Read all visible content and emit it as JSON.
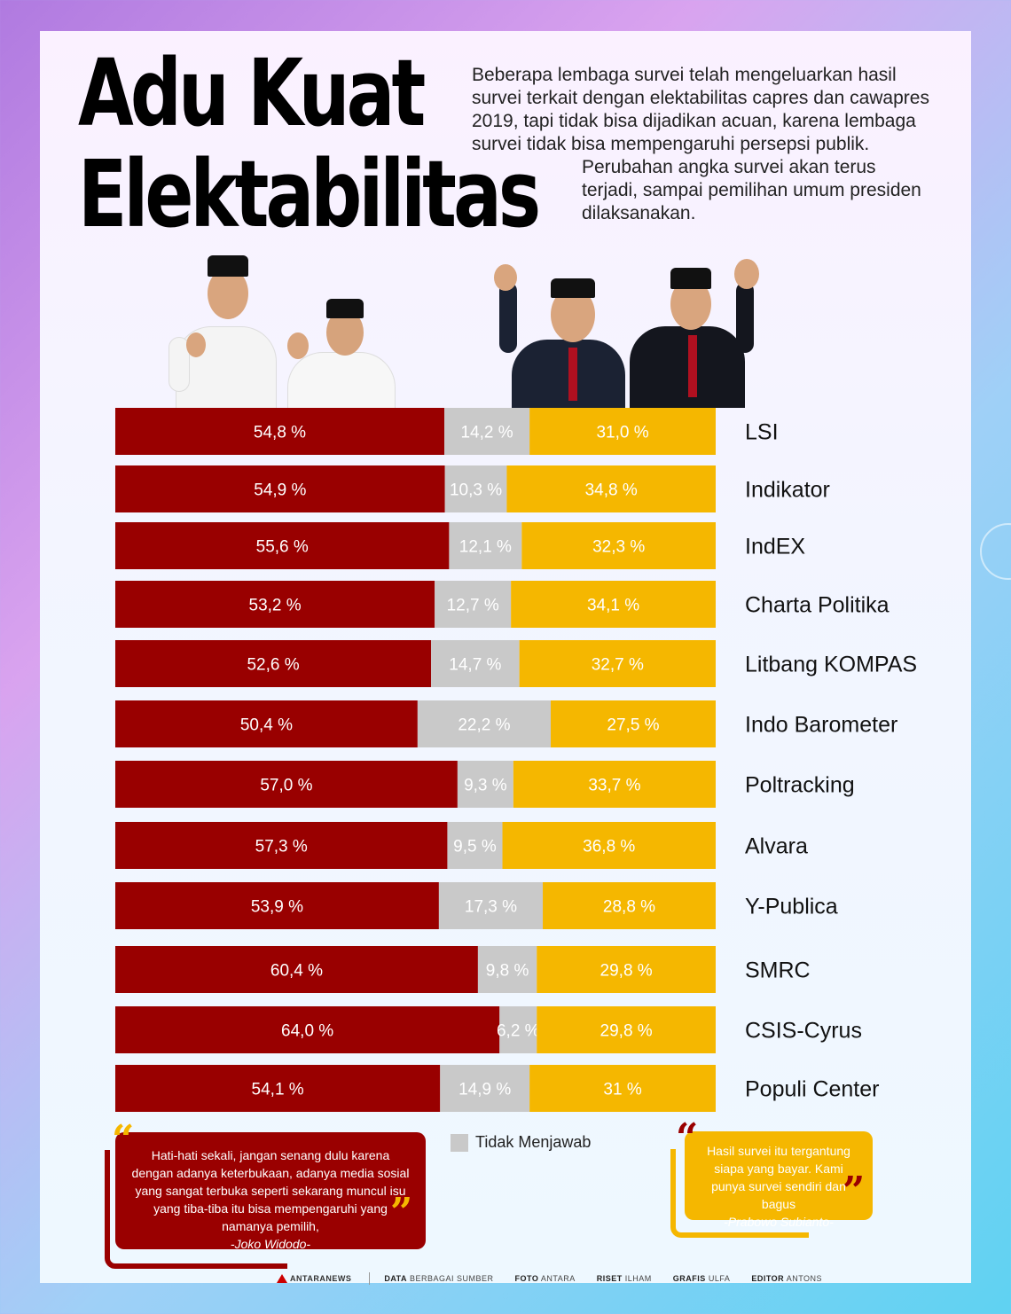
{
  "title": {
    "line1": "Adu Kuat",
    "line2": "Elektabilitas"
  },
  "intro": {
    "p1": "Beberapa lembaga survei telah mengeluarkan hasil survei terkait dengan elektabilitas capres dan cawapres 2019, tapi tidak bisa dijadikan acuan, karena lembaga survei tidak bisa mempengaruhi persepsi publik.",
    "p2": "Perubahan angka survei akan terus terjadi, sampai pemilihan umum presiden dilaksanakan."
  },
  "chart_data": {
    "type": "bar",
    "orientation": "horizontal",
    "stacked": true,
    "categories": [
      "LSI",
      "Indikator",
      "IndEX",
      "Charta Politika",
      "Litbang KOMPAS",
      "Indo Barometer",
      "Poltracking",
      "Alvara",
      "Y-Publica",
      "SMRC",
      "CSIS-Cyrus",
      "Populi Center"
    ],
    "series": [
      {
        "color": "#990000",
        "values": [
          54.8,
          54.9,
          55.6,
          53.2,
          52.6,
          50.4,
          57.0,
          57.3,
          53.9,
          60.4,
          64.0,
          54.1
        ],
        "labels": [
          "54,8 %",
          "54,9 %",
          "55,6 %",
          "53,2 %",
          "52,6 %",
          "50,4 %",
          "57,0 %",
          "57,3 %",
          "53,9 %",
          "60,4 %",
          "64,0 %",
          "54,1 %"
        ]
      },
      {
        "name": "Tidak Menjawab",
        "color": "#c9c9c9",
        "values": [
          14.2,
          10.3,
          12.1,
          12.7,
          14.7,
          22.2,
          9.3,
          9.5,
          17.3,
          9.8,
          6.2,
          14.9
        ],
        "labels": [
          "14,2 %",
          "10,3 %",
          "12,1 %",
          "12,7 %",
          "14,7 %",
          "22,2 %",
          "9,3 %",
          "9,5 %",
          "17,3 %",
          "9,8 %",
          "6,2 %",
          "14,9 %"
        ]
      },
      {
        "color": "#f5b700",
        "values": [
          31.0,
          34.8,
          32.3,
          34.1,
          32.7,
          27.5,
          33.7,
          36.8,
          28.8,
          29.8,
          29.8,
          31
        ],
        "labels": [
          "31,0 %",
          "34,8 %",
          "32,3 %",
          "34,1 %",
          "32,7 %",
          "27,5 %",
          "33,7 %",
          "36,8 %",
          "28,8 %",
          "29,8 %",
          "29,8 %",
          "31 %"
        ]
      }
    ],
    "legend": {
      "label": "Tidak Menjawab",
      "position": "bottom"
    },
    "grid": false
  },
  "quotes": {
    "left": {
      "text": "Hati-hati sekali, jangan senang dulu karena dengan adanya keterbukaan, adanya media sosial yang sangat terbuka seperti sekarang muncul isu yang tiba-tiba itu bisa mempengaruhi yang namanya pemilih,",
      "author": "-Joko Widodo-"
    },
    "right": {
      "text": "Hasil survei itu tergantung siapa yang bayar. Kami punya survei sendiri dan bagus",
      "author": "-Prabowo Subianto-"
    }
  },
  "footer": {
    "logo": "ANTARANEWS",
    "data_label": "DATA",
    "data_value": "BERBAGAI SUMBER",
    "foto_label": "FOTO",
    "foto_value": "ANTARA",
    "riset_label": "RISET",
    "riset_value": "ILHAM",
    "grafis_label": "GRAFIS",
    "grafis_value": "ULFA",
    "editor_label": "EDITOR",
    "editor_value": "ANTONS"
  },
  "colors": {
    "candidate1": "#990000",
    "undecided": "#c9c9c9",
    "candidate2": "#f5b700"
  }
}
